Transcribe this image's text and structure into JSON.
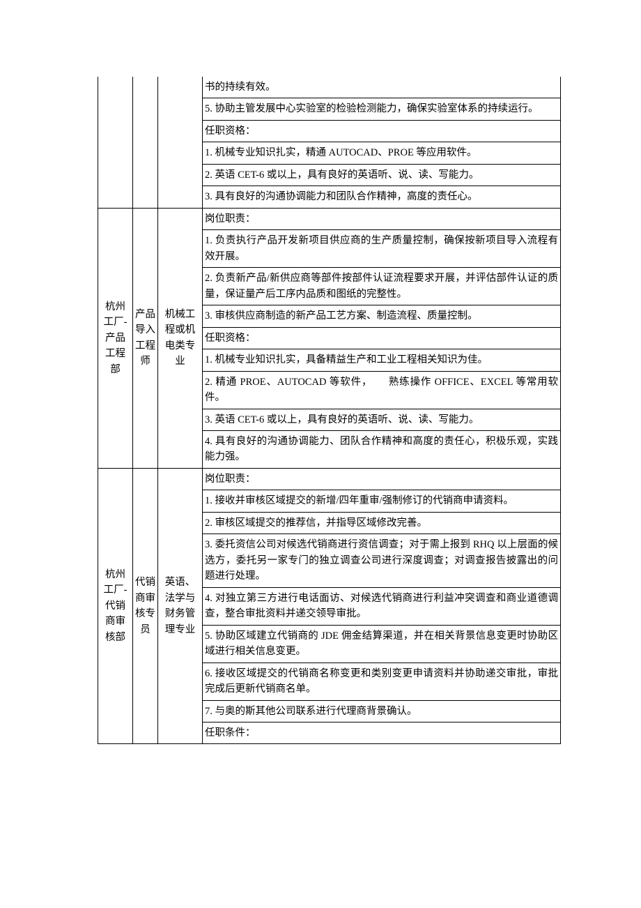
{
  "rows": [
    {
      "group": 0,
      "desc": "书的持续有效。"
    },
    {
      "group": 0,
      "desc": "5. 协助主管发展中心实验室的检验检测能力，确保实验室体系的持续运行。"
    },
    {
      "group": 0,
      "desc": "任职资格："
    },
    {
      "group": 0,
      "desc": "1. 机械专业知识扎实，精通 AUTOCAD、PROE 等应用软件。"
    },
    {
      "group": 0,
      "desc": "2. 英语 CET-6 或以上，具有良好的英语听、说、读、写能力。"
    },
    {
      "group": 0,
      "desc": "3. 具有良好的沟通协调能力和团队合作精神，高度的责任心。"
    },
    {
      "group": 1,
      "desc": "岗位职责："
    },
    {
      "group": 1,
      "desc": "1. 负责执行产品开发新项目供应商的生产质量控制，确保按新项目导入流程有效开展。"
    },
    {
      "group": 1,
      "desc": "2. 负责新产品/新供应商等部件按部件认证流程要求开展，并评估部件认证的质量，保证量产后工序内品质和图纸的完整性。"
    },
    {
      "group": 1,
      "desc": "3. 审核供应商制造的新产品工艺方案、制造流程、质量控制。"
    },
    {
      "group": 1,
      "desc": "任职资格："
    },
    {
      "group": 1,
      "desc": "1. 机械专业知识扎实，具备精益生产和工业工程相关知识为佳。"
    },
    {
      "group": 1,
      "desc": "2. 精通 PROE、AUTOCAD 等软件，　　熟练操作 OFFICE、EXCEL 等常用软件。"
    },
    {
      "group": 1,
      "desc": "3. 英语 CET-6 或以上，具有良好的英语听、说、读、写能力。"
    },
    {
      "group": 1,
      "desc": "4. 具有良好的沟通协调能力、团队合作精神和高度的责任心，积极乐观，实践能力强。"
    },
    {
      "group": 2,
      "desc": "岗位职责："
    },
    {
      "group": 2,
      "desc": "1. 接收并审核区域提交的新增/四年重审/强制修订的代销商申请资料。"
    },
    {
      "group": 2,
      "desc": "2. 审核区域提交的推荐信，并指导区域修改完善。"
    },
    {
      "group": 2,
      "desc": "3. 委托资信公司对候选代销商进行资信调查；对于需上报到 RHQ 以上层面的候选方，委托另一家专门的独立调查公司进行深度调查；对调查报告披露出的问题进行处理。"
    },
    {
      "group": 2,
      "desc": "4. 对独立第三方进行电话面访、对候选代销商进行利益冲突调查和商业道德调查，整合审批资料并递交领导审批。"
    },
    {
      "group": 2,
      "desc": "5. 协助区域建立代销商的 JDE 佣金结算渠道，并在相关背景信息变更时协助区域进行相关信息变更。"
    },
    {
      "group": 2,
      "desc": "6. 接收区域提交的代销商名称变更和类别变更申请资料并协助递交审批，审批完成后更新代销商名单。"
    },
    {
      "group": 2,
      "desc": "7. 与奥的斯其他公司联系进行代理商背景确认。"
    },
    {
      "group": 2,
      "desc": "任职条件："
    }
  ],
  "groups": {
    "1": {
      "dept": "杭州工厂-产品工程部",
      "position": "产品导入工程师",
      "major": "机械工程或机电类专业"
    },
    "2": {
      "dept": "杭州工厂-代销商审核部",
      "position": "代销商审核专员",
      "major": "英语、法学与财务管理专业"
    }
  }
}
